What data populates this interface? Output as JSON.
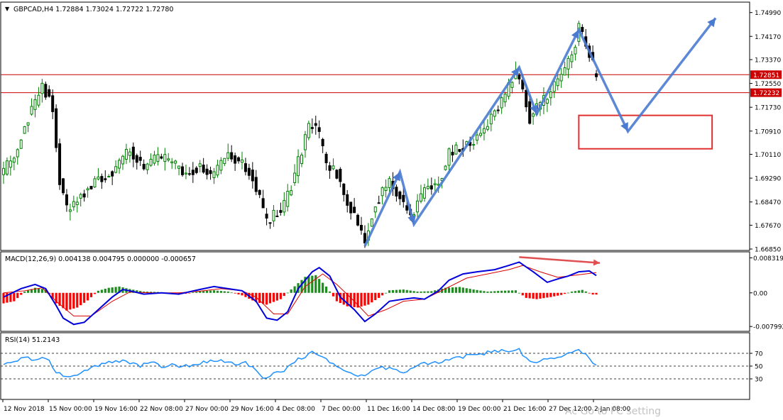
{
  "symbol_line": "GBPCAD,H4  1.72884 1.73024 1.72722 1.72780",
  "macd_label": "MACD(12,26,9) 0.004138 0.004795 0.000000 -0.000657",
  "rsi_label": "RSI(14) 51.2143",
  "watermark": "Ac                     Go to PC setting",
  "colors": {
    "bull_candle": "#008000",
    "bear_candle": "#000000",
    "hline": "#cc0000",
    "drawing": "#4a7bd0",
    "target_box": "#e03030",
    "macd_pos": "#1e8c1e",
    "macd_neg": "#ff0000",
    "macd_main": "#0000dd",
    "macd_signal": "#dd0000",
    "rsi_line": "#1e90ff",
    "divergence_arrow": "#e05050"
  },
  "chart_data": [
    {
      "type": "candlestick",
      "title": "GBPCAD,H4",
      "ohlc_last": {
        "open": 1.72884,
        "high": 1.73024,
        "low": 1.72722,
        "close": 1.7278
      },
      "ylim": [
        1.6685,
        1.753
      ],
      "y_ticks": [
        "1.74990",
        "1.74170",
        "1.73370",
        "1.72550",
        "1.71730",
        "1.70910",
        "1.70110",
        "1.69290",
        "1.68470",
        "1.67670",
        "1.66850"
      ],
      "x_ticks": [
        "12 Nov 2018",
        "15 Nov 00:00",
        "19 Nov 16:00",
        "22 Nov 08:00",
        "27 Nov 00:00",
        "29 Nov 16:00",
        "4 Dec 08:00",
        "7 Dec 00:00",
        "11 Dec 16:00",
        "14 Dec 08:00",
        "19 Dec 00:00",
        "21 Dec 16:00",
        "27 Dec 12:00",
        "2 Jan 08:00"
      ],
      "horizontal_lines": [
        {
          "label": "1.72851",
          "value": 1.72851
        },
        {
          "label": "1.72232",
          "value": 1.72232
        }
      ],
      "price_path": [
        [
          0,
          1.695
        ],
        [
          3,
          1.7
        ],
        [
          6,
          1.712
        ],
        [
          9,
          1.718
        ],
        [
          11,
          1.725
        ],
        [
          13,
          1.721
        ],
        [
          14,
          1.717
        ],
        [
          16,
          1.692
        ],
        [
          18,
          1.682
        ],
        [
          22,
          1.687
        ],
        [
          27,
          1.693
        ],
        [
          32,
          1.696
        ],
        [
          36,
          1.703
        ],
        [
          40,
          1.696
        ],
        [
          44,
          1.7
        ],
        [
          48,
          1.698
        ],
        [
          52,
          1.694
        ],
        [
          56,
          1.697
        ],
        [
          60,
          1.693
        ],
        [
          64,
          1.702
        ],
        [
          67,
          1.699
        ],
        [
          70,
          1.696
        ],
        [
          73,
          1.686
        ],
        [
          75,
          1.677
        ],
        [
          77,
          1.68
        ],
        [
          80,
          1.683
        ],
        [
          83,
          1.694
        ],
        [
          86,
          1.707
        ],
        [
          88,
          1.712
        ],
        [
          90,
          1.707
        ],
        [
          92,
          1.697
        ],
        [
          95,
          1.695
        ],
        [
          98,
          1.684
        ],
        [
          100,
          1.68
        ],
        [
          103,
          1.672
        ],
        [
          106,
          1.685
        ],
        [
          110,
          1.691
        ],
        [
          113,
          1.686
        ],
        [
          116,
          1.68
        ],
        [
          120,
          1.689
        ],
        [
          124,
          1.692
        ],
        [
          127,
          1.701
        ],
        [
          131,
          1.704
        ],
        [
          134,
          1.706
        ],
        [
          137,
          1.71
        ],
        [
          140,
          1.716
        ],
        [
          143,
          1.722
        ],
        [
          146,
          1.729
        ],
        [
          148,
          1.724
        ],
        [
          150,
          1.714
        ],
        [
          153,
          1.718
        ],
        [
          156,
          1.723
        ],
        [
          159,
          1.729
        ],
        [
          162,
          1.736
        ],
        [
          164,
          1.744
        ],
        [
          165,
          1.742
        ],
        [
          167,
          1.736
        ],
        [
          169,
          1.7278
        ]
      ],
      "drawn_path": {
        "points": [
          [
            103,
            1.6695
          ],
          [
            113,
            1.695
          ],
          [
            117,
            1.677
          ],
          [
            147,
            1.731
          ],
          [
            152,
            1.715
          ],
          [
            164,
            1.744
          ],
          [
            178,
            1.709
          ],
          [
            203,
            1.748
          ]
        ]
      },
      "target_zone": {
        "x_range": [
          164,
          202
        ],
        "y_range": [
          1.703,
          1.7145
        ]
      }
    },
    {
      "type": "histogram+line",
      "title": "MACD(12,26,9)",
      "values": {
        "main": 0.004138,
        "signal": 0.004795,
        "histogram": -0.000657
      },
      "ylim": [
        -0.0088,
        0.0094
      ],
      "y_ticks": [
        "0.008319",
        "0.00",
        "-0.007992"
      ],
      "main_path": [
        [
          0,
          -0.001
        ],
        [
          5,
          0.001
        ],
        [
          9,
          0.002
        ],
        [
          12,
          0.001
        ],
        [
          15,
          -0.003
        ],
        [
          17,
          -0.006
        ],
        [
          20,
          -0.0075
        ],
        [
          23,
          -0.007
        ],
        [
          27,
          -0.004
        ],
        [
          31,
          -0.001
        ],
        [
          34,
          0.0008
        ],
        [
          37,
          0.0003
        ],
        [
          40,
          -0.0003
        ],
        [
          45,
          0.0
        ],
        [
          50,
          -0.0003
        ],
        [
          56,
          0.0008
        ],
        [
          60,
          0.0015
        ],
        [
          64,
          0.001
        ],
        [
          68,
          0.0005
        ],
        [
          72,
          -0.002
        ],
        [
          75,
          -0.006
        ],
        [
          78,
          -0.0065
        ],
        [
          81,
          -0.0045
        ],
        [
          84,
          0.001
        ],
        [
          88,
          0.005
        ],
        [
          90,
          0.006
        ],
        [
          93,
          0.004
        ],
        [
          96,
          -0.001
        ],
        [
          100,
          -0.004
        ],
        [
          103,
          -0.0068
        ],
        [
          106,
          -0.005
        ],
        [
          110,
          -0.002
        ],
        [
          114,
          -0.0015
        ],
        [
          117,
          -0.0012
        ],
        [
          120,
          -0.0015
        ],
        [
          124,
          0.0005
        ],
        [
          127,
          0.003
        ],
        [
          131,
          0.0045
        ],
        [
          135,
          0.005
        ],
        [
          140,
          0.0055
        ],
        [
          144,
          0.0065
        ],
        [
          147,
          0.0073
        ],
        [
          151,
          0.005
        ],
        [
          155,
          0.0025
        ],
        [
          158,
          0.0033
        ],
        [
          161,
          0.004
        ],
        [
          164,
          0.005
        ],
        [
          167,
          0.0052
        ],
        [
          169,
          0.0041
        ]
      ],
      "signal_path": [
        [
          0,
          0.0
        ],
        [
          6,
          0.0005
        ],
        [
          11,
          0.0012
        ],
        [
          15,
          -0.002
        ],
        [
          20,
          -0.0055
        ],
        [
          25,
          -0.0055
        ],
        [
          31,
          -0.002
        ],
        [
          36,
          0.0002
        ],
        [
          42,
          0.0
        ],
        [
          50,
          0.0
        ],
        [
          56,
          0.0004
        ],
        [
          62,
          0.001
        ],
        [
          68,
          0.0005
        ],
        [
          72,
          -0.001
        ],
        [
          77,
          -0.005
        ],
        [
          81,
          -0.005
        ],
        [
          86,
          0.0015
        ],
        [
          91,
          0.0045
        ],
        [
          95,
          0.002
        ],
        [
          100,
          -0.002
        ],
        [
          104,
          -0.0055
        ],
        [
          109,
          -0.004
        ],
        [
          114,
          -0.002
        ],
        [
          120,
          -0.0015
        ],
        [
          126,
          0.001
        ],
        [
          132,
          0.0035
        ],
        [
          138,
          0.0045
        ],
        [
          144,
          0.0055
        ],
        [
          148,
          0.0065
        ],
        [
          153,
          0.005
        ],
        [
          158,
          0.0037
        ],
        [
          164,
          0.0043
        ],
        [
          169,
          0.0048
        ]
      ],
      "histogram": [
        [
          0,
          -0.0025
        ],
        [
          3,
          -0.002
        ],
        [
          6,
          0.0003
        ],
        [
          9,
          0.0012
        ],
        [
          12,
          0.0008
        ],
        [
          15,
          -0.0025
        ],
        [
          18,
          -0.0042
        ],
        [
          21,
          -0.0035
        ],
        [
          24,
          -0.0018
        ],
        [
          27,
          0.0005
        ],
        [
          30,
          0.0012
        ],
        [
          33,
          0.0015
        ],
        [
          36,
          0.0009
        ],
        [
          40,
          0.0003
        ],
        [
          44,
          0.0002
        ],
        [
          48,
          -0.0003
        ],
        [
          52,
          -0.0002
        ],
        [
          56,
          0.0004
        ],
        [
          60,
          0.0006
        ],
        [
          64,
          0.0003
        ],
        [
          68,
          -0.0006
        ],
        [
          72,
          -0.0022
        ],
        [
          75,
          -0.0028
        ],
        [
          79,
          -0.0015
        ],
        [
          82,
          0.0008
        ],
        [
          86,
          0.0038
        ],
        [
          89,
          0.0042
        ],
        [
          92,
          0.0015
        ],
        [
          95,
          -0.002
        ],
        [
          98,
          -0.0032
        ],
        [
          101,
          -0.0035
        ],
        [
          104,
          -0.0028
        ],
        [
          107,
          -0.0012
        ],
        [
          110,
          0.0006
        ],
        [
          114,
          0.0008
        ],
        [
          118,
          0.0003
        ],
        [
          122,
          0.0004
        ],
        [
          126,
          0.0012
        ],
        [
          130,
          0.0014
        ],
        [
          134,
          0.0008
        ],
        [
          138,
          0.0003
        ],
        [
          142,
          0.0005
        ],
        [
          146,
          0.0006
        ],
        [
          149,
          -0.0012
        ],
        [
          152,
          -0.0015
        ],
        [
          156,
          -0.001
        ],
        [
          159,
          -0.0005
        ],
        [
          162,
          0.0003
        ],
        [
          165,
          0.0007
        ],
        [
          168,
          -0.0004
        ]
      ],
      "divergence_arrow": {
        "from": [
          147,
          0.0085
        ],
        "to": [
          170,
          0.0071
        ]
      }
    },
    {
      "type": "line",
      "title": "RSI(14)",
      "value": 51.2143,
      "ylim": [
        0,
        100
      ],
      "y_ticks": [
        "70",
        "50",
        "30"
      ],
      "levels": [
        70,
        50,
        30
      ],
      "path": [
        [
          0,
          52
        ],
        [
          3,
          58
        ],
        [
          6,
          62
        ],
        [
          9,
          60
        ],
        [
          12,
          64
        ],
        [
          15,
          42
        ],
        [
          18,
          33
        ],
        [
          21,
          36
        ],
        [
          24,
          45
        ],
        [
          27,
          52
        ],
        [
          30,
          55
        ],
        [
          33,
          58
        ],
        [
          36,
          54
        ],
        [
          39,
          50
        ],
        [
          42,
          55
        ],
        [
          45,
          50
        ],
        [
          48,
          52
        ],
        [
          51,
          48
        ],
        [
          54,
          52
        ],
        [
          57,
          56
        ],
        [
          60,
          60
        ],
        [
          63,
          56
        ],
        [
          66,
          52
        ],
        [
          69,
          55
        ],
        [
          72,
          44
        ],
        [
          74,
          30
        ],
        [
          77,
          38
        ],
        [
          80,
          44
        ],
        [
          83,
          58
        ],
        [
          86,
          66
        ],
        [
          88,
          72
        ],
        [
          90,
          65
        ],
        [
          93,
          56
        ],
        [
          96,
          44
        ],
        [
          99,
          40
        ],
        [
          102,
          34
        ],
        [
          105,
          42
        ],
        [
          108,
          48
        ],
        [
          111,
          46
        ],
        [
          114,
          40
        ],
        [
          117,
          48
        ],
        [
          120,
          54
        ],
        [
          124,
          56
        ],
        [
          128,
          62
        ],
        [
          132,
          66
        ],
        [
          136,
          70
        ],
        [
          140,
          72
        ],
        [
          144,
          74
        ],
        [
          147,
          76
        ],
        [
          150,
          55
        ],
        [
          153,
          58
        ],
        [
          156,
          60
        ],
        [
          159,
          64
        ],
        [
          162,
          70
        ],
        [
          164,
          78
        ],
        [
          166,
          68
        ],
        [
          169,
          51
        ]
      ]
    }
  ]
}
